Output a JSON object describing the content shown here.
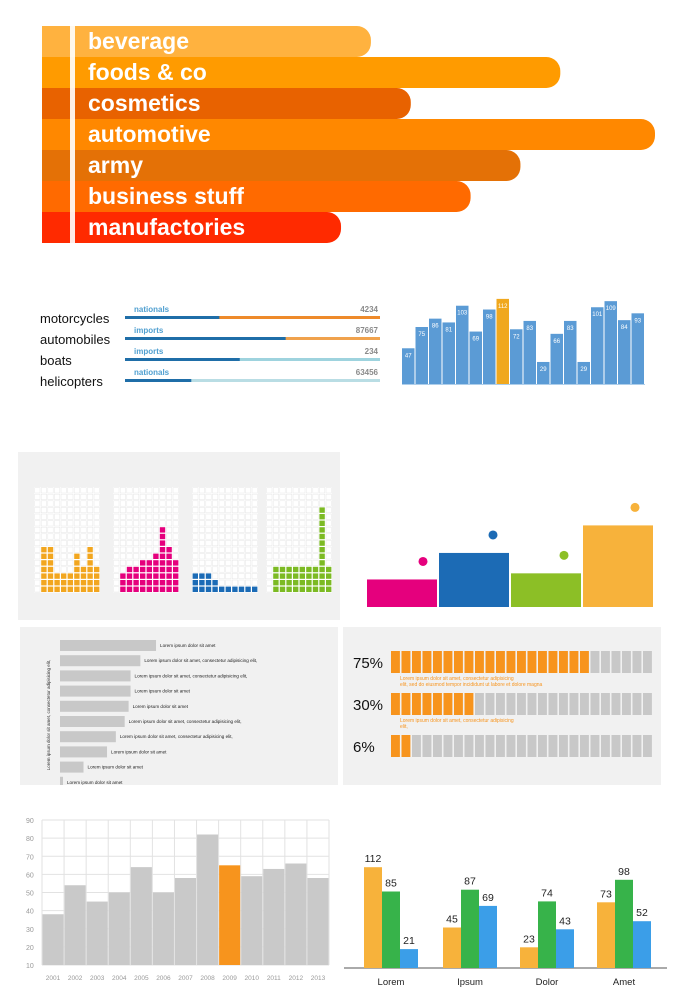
{
  "colors": {
    "orange": "#f7941d",
    "green": "#37b34a",
    "blue": "#3b9ee8",
    "yellow_orange": "#f7b23b",
    "steel_blue": "#5b9bd5",
    "gold": "#f0a81e",
    "magenta": "#e5007d",
    "royal_blue": "#1c6bb5",
    "lime": "#8cbf26",
    "grey_bar": "#c9c9c9"
  },
  "chart_data": [
    {
      "type": "bar",
      "orientation": "horizontal",
      "categories": [
        "beverage",
        "foods & co",
        "cosmetics",
        "automotive",
        "army",
        "business stuff",
        "manufactories"
      ],
      "values": [
        330,
        520,
        370,
        615,
        480,
        430,
        300
      ],
      "value_note": "relative lengths, unlabeled",
      "colors": [
        "#ffb23f",
        "#ff9b00",
        "#e86200",
        "#ff8800",
        "#e47106",
        "#ff6a00",
        "#ff2a00"
      ]
    },
    {
      "type": "bar",
      "orientation": "horizontal",
      "rows": [
        {
          "label": "motorcycles",
          "tag": "nationals",
          "value": "4234",
          "fraction": 0.37,
          "bar_colors": [
            "#1f6ea8",
            "#ee8a2a"
          ]
        },
        {
          "label": "automobiles",
          "tag": "imports",
          "value": "87667",
          "fraction": 0.63,
          "bar_colors": [
            "#1f6ea8",
            "#f0a24d"
          ]
        },
        {
          "label": "boats",
          "tag": "imports",
          "value": "234",
          "fraction": 0.45,
          "bar_colors": [
            "#1f6ea8",
            "#9ed3de"
          ]
        },
        {
          "label": "helicopters",
          "tag": "nationals",
          "value": "63456",
          "fraction": 0.26,
          "bar_colors": [
            "#1f6ea8",
            "#b9dde4"
          ]
        }
      ],
      "tag_color": "#4f9fd0",
      "value_color": "#8a8a8a"
    },
    {
      "type": "bar",
      "values": [
        47,
        75,
        86,
        81,
        103,
        69,
        98,
        112,
        72,
        83,
        29,
        66,
        83,
        29,
        101,
        109,
        84,
        93
      ],
      "highlight_index": 7,
      "highlight_color": "#f0a81e",
      "bar_color": "#5b9bd5"
    },
    {
      "type": "bar",
      "style": "waffle-grids",
      "grid_columns": 10,
      "grid_rows": 16,
      "panels": [
        {
          "color": "#f2a61f",
          "column_heights": [
            0,
            7,
            7,
            3,
            3,
            3,
            6,
            4,
            7,
            4
          ]
        },
        {
          "color": "#e5007d",
          "column_heights": [
            0,
            3,
            4,
            4,
            5,
            5,
            6,
            10,
            7,
            5
          ]
        },
        {
          "color": "#1b6bb6",
          "column_heights": [
            3,
            3,
            3,
            2,
            1,
            1,
            1,
            1,
            1,
            1
          ]
        },
        {
          "color": "#7cba23",
          "column_heights": [
            0,
            4,
            4,
            4,
            4,
            4,
            4,
            4,
            13,
            4
          ]
        }
      ]
    },
    {
      "type": "bar",
      "values": [
        27,
        53,
        33,
        80
      ],
      "colors": [
        "#e5007d",
        "#1c6bb5",
        "#8cbf26",
        "#f7b23b"
      ],
      "markers": true
    },
    {
      "type": "bar",
      "orientation": "horizontal",
      "values": [
        98,
        82,
        72,
        72,
        70,
        66,
        57,
        48,
        24,
        2
      ],
      "labels": [
        "Lorem ipsum dolor sit amet",
        "Lorem ipsum dolor sit amet, consectetur adipisicing elit,",
        "Lorem ipsum dolor sit amet, consectetur adipisicing elit,",
        "Lorem ipsum dolor sit amet",
        "Lorem ipsum dolor sit amet",
        "Lorem ipsum dolor sit amet, consectetur adipisicing elit,",
        "Lorem ipsum dolor sit amet, consectetur adipisicing elit,",
        "Lorem ipsum dolor sit amet",
        "Lorem ipsum dolor sit amet",
        "Lorem ipsum dolor sit amet"
      ],
      "ylabel": "Lorem ipsum dolor sit amet, consectetur adipisicing elit,"
    },
    {
      "type": "bar",
      "style": "segmented-progress",
      "segments_total": 25,
      "rows": [
        {
          "label": "75%",
          "value": 75,
          "caption": "Lorem ipsum dolor sit amet, consectetur adipisicing elit, sed do eiusmod tempor incididunt ut labore et dolore magna"
        },
        {
          "label": "30%",
          "value": 30,
          "caption": "Lorem ipsum dolor sit amet, consectetur adipisicing elit,"
        },
        {
          "label": "6%",
          "value": 6,
          "caption": ""
        }
      ],
      "fill_color": "#f7941d",
      "empty_color": "#c8c8c8"
    },
    {
      "type": "bar",
      "categories": [
        "2001",
        "2002",
        "2003",
        "2004",
        "2005",
        "2006",
        "2007",
        "2008",
        "2009",
        "2010",
        "2011",
        "2012",
        "2013"
      ],
      "values": [
        38,
        54,
        45,
        50,
        64,
        50,
        58,
        82,
        65,
        59,
        63,
        66,
        58
      ],
      "highlight_index": 8,
      "ylim": [
        10,
        90
      ],
      "yticks": [
        "90",
        "80",
        "70",
        "60",
        "50",
        "40",
        "30",
        "20",
        "10"
      ],
      "grid": true,
      "bar_color": "#c9c9c9",
      "highlight_color": "#f7941d"
    },
    {
      "type": "bar",
      "categories": [
        "Lorem",
        "Ipsum",
        "Dolor",
        "Amet"
      ],
      "series": [
        {
          "values": [
            112,
            45,
            23,
            73
          ],
          "color": "#f7b23b"
        },
        {
          "values": [
            85,
            87,
            74,
            98
          ],
          "color": "#37b34a"
        },
        {
          "values": [
            21,
            69,
            43,
            52
          ],
          "color": "#3b9ee8"
        }
      ],
      "ylim": [
        0,
        120
      ]
    }
  ]
}
